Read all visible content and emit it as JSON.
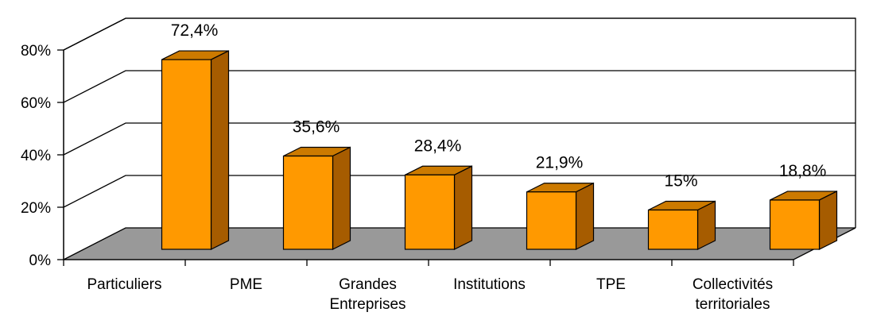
{
  "chart_data": {
    "type": "bar",
    "title": "",
    "xlabel": "",
    "ylabel": "",
    "ylim": [
      0,
      80
    ],
    "y_ticks": [
      "0%",
      "20%",
      "40%",
      "60%",
      "80%"
    ],
    "grid": true,
    "legend": "none",
    "style": "3d",
    "categories": [
      [
        "Particuliers"
      ],
      [
        "PME"
      ],
      [
        "Grandes",
        "Entreprises"
      ],
      [
        "Institutions"
      ],
      [
        "TPE"
      ],
      [
        "Collectivités",
        "territoriales"
      ]
    ],
    "values": [
      72.4,
      35.6,
      28.4,
      21.9,
      15,
      18.8
    ],
    "value_labels": [
      "72,4%",
      "35,6%",
      "28,4%",
      "21,9%",
      "15%",
      "18,8%"
    ],
    "colors": {
      "bar_front": "#ff9900",
      "bar_side": "#a65c00",
      "bar_top": "#cc7a00",
      "floor": "#999999",
      "grid": "#000000"
    }
  }
}
